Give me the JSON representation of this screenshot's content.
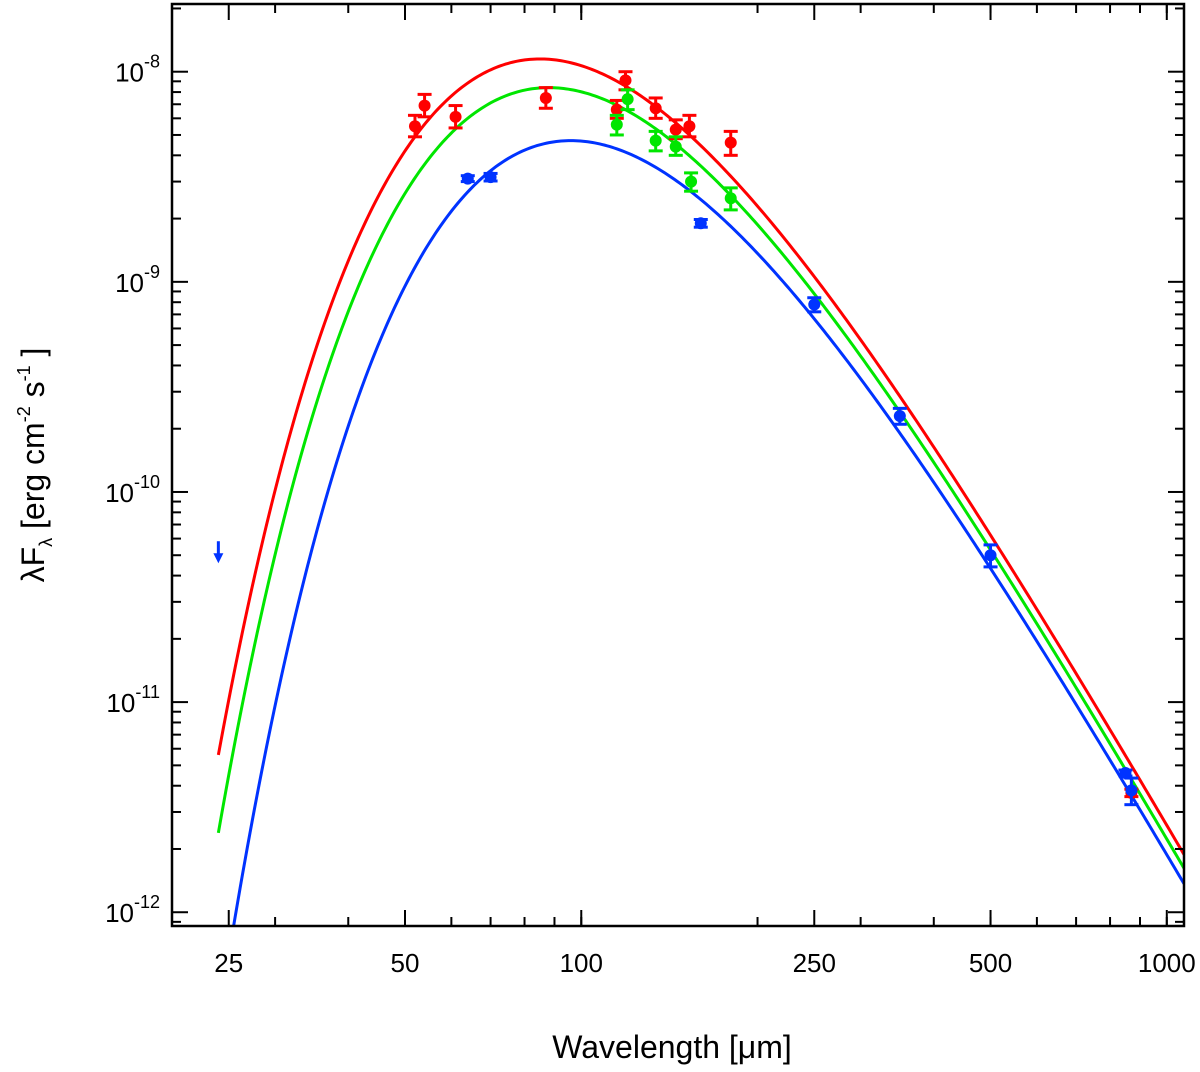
{
  "chart_data": {
    "type": "scatter",
    "xlabel": "Wavelength [μm]",
    "ylabel": "λF_λ [erg cm^-2 s^-1]",
    "x_scale": "log",
    "y_scale": "log",
    "xlim": [
      20,
      1070
    ],
    "ylim": [
      8.6e-13,
      2.1e-08
    ],
    "grid": false,
    "x_ticks": [
      {
        "value": 25,
        "label": "25"
      },
      {
        "value": 50,
        "label": "50"
      },
      {
        "value": 100,
        "label": "100"
      },
      {
        "value": 250,
        "label": "250"
      },
      {
        "value": 500,
        "label": "500"
      },
      {
        "value": 1000,
        "label": "1000"
      }
    ],
    "y_ticks": [
      {
        "value": 1e-08,
        "mant": "10",
        "exp": "-8"
      },
      {
        "value": 1e-09,
        "mant": "10",
        "exp": "-9"
      },
      {
        "value": 1e-10,
        "mant": "10",
        "exp": "-10"
      },
      {
        "value": 1e-11,
        "mant": "10",
        "exp": "-11"
      },
      {
        "value": 1e-12,
        "mant": "10",
        "exp": "-12"
      }
    ],
    "series": [
      {
        "color": "#ff0000",
        "curve": {
          "peak_x": 85,
          "peak_y": 1.15e-08,
          "beta": 2.0,
          "x_range": [
            24,
            1070
          ]
        },
        "points": [
          {
            "x": 52,
            "y": 5.5e-09,
            "lo": 4.9e-09,
            "hi": 6.2e-09
          },
          {
            "x": 54,
            "y": 6.9e-09,
            "lo": 6.1e-09,
            "hi": 7.8e-09
          },
          {
            "x": 61,
            "y": 6.1e-09,
            "lo": 5.4e-09,
            "hi": 6.9e-09
          },
          {
            "x": 87,
            "y": 7.5e-09,
            "lo": 6.7e-09,
            "hi": 8.4e-09
          },
          {
            "x": 115,
            "y": 6.6e-09,
            "lo": 6e-09,
            "hi": 7.3e-09
          },
          {
            "x": 119,
            "y": 9.1e-09,
            "lo": 8.2e-09,
            "hi": 1e-08
          },
          {
            "x": 134,
            "y": 6.7e-09,
            "lo": 6e-09,
            "hi": 7.5e-09
          },
          {
            "x": 145,
            "y": 5.3e-09,
            "lo": 4.8e-09,
            "hi": 5.9e-09
          },
          {
            "x": 153,
            "y": 5.5e-09,
            "lo": 4.9e-09,
            "hi": 6.2e-09
          },
          {
            "x": 180,
            "y": 4.6e-09,
            "lo": 4e-09,
            "hi": 5.2e-09
          },
          {
            "x": 870,
            "y": 3.7e-12,
            "lo": 3.55e-12,
            "hi": 3.85e-12
          }
        ]
      },
      {
        "color": "#00e600",
        "curve": {
          "peak_x": 88,
          "peak_y": 8.4e-09,
          "beta": 2.0,
          "x_range": [
            24,
            1070
          ]
        },
        "points": [
          {
            "x": 115,
            "y": 5.6e-09,
            "lo": 5e-09,
            "hi": 6.2e-09
          },
          {
            "x": 120,
            "y": 7.4e-09,
            "lo": 6.6e-09,
            "hi": 8.2e-09
          },
          {
            "x": 134,
            "y": 4.7e-09,
            "lo": 4.2e-09,
            "hi": 5.2e-09
          },
          {
            "x": 145,
            "y": 4.4e-09,
            "lo": 4e-09,
            "hi": 4.9e-09
          },
          {
            "x": 154,
            "y": 3e-09,
            "lo": 2.7e-09,
            "hi": 3.3e-09
          },
          {
            "x": 180,
            "y": 2.5e-09,
            "lo": 2.2e-09,
            "hi": 2.8e-09
          }
        ]
      },
      {
        "color": "#0033ff",
        "curve": {
          "peak_x": 96,
          "peak_y": 4.7e-09,
          "beta": 2.0,
          "x_range": [
            24,
            1070
          ]
        },
        "points": [
          {
            "x": 64,
            "y": 3.1e-09,
            "lo": 3e-09,
            "hi": 3.2e-09
          },
          {
            "x": 70,
            "y": 3.15e-09,
            "lo": 3.02e-09,
            "hi": 3.28e-09
          },
          {
            "x": 160,
            "y": 1.9e-09,
            "lo": 1.82e-09,
            "hi": 1.98e-09
          },
          {
            "x": 250,
            "y": 7.8e-10,
            "lo": 7.2e-10,
            "hi": 8.4e-10
          },
          {
            "x": 350,
            "y": 2.3e-10,
            "lo": 2.1e-10,
            "hi": 2.5e-10
          },
          {
            "x": 500,
            "y": 5e-11,
            "lo": 4.4e-11,
            "hi": 5.6e-11
          },
          {
            "x": 850,
            "y": 4.6e-12,
            "lo": 4.45e-12,
            "hi": 4.75e-12
          },
          {
            "x": 870,
            "y": 3.8e-12,
            "lo": 3.25e-12,
            "hi": 4.35e-12
          }
        ],
        "upper_limits": [
          {
            "x": 24,
            "y": 5e-11
          }
        ]
      }
    ]
  }
}
